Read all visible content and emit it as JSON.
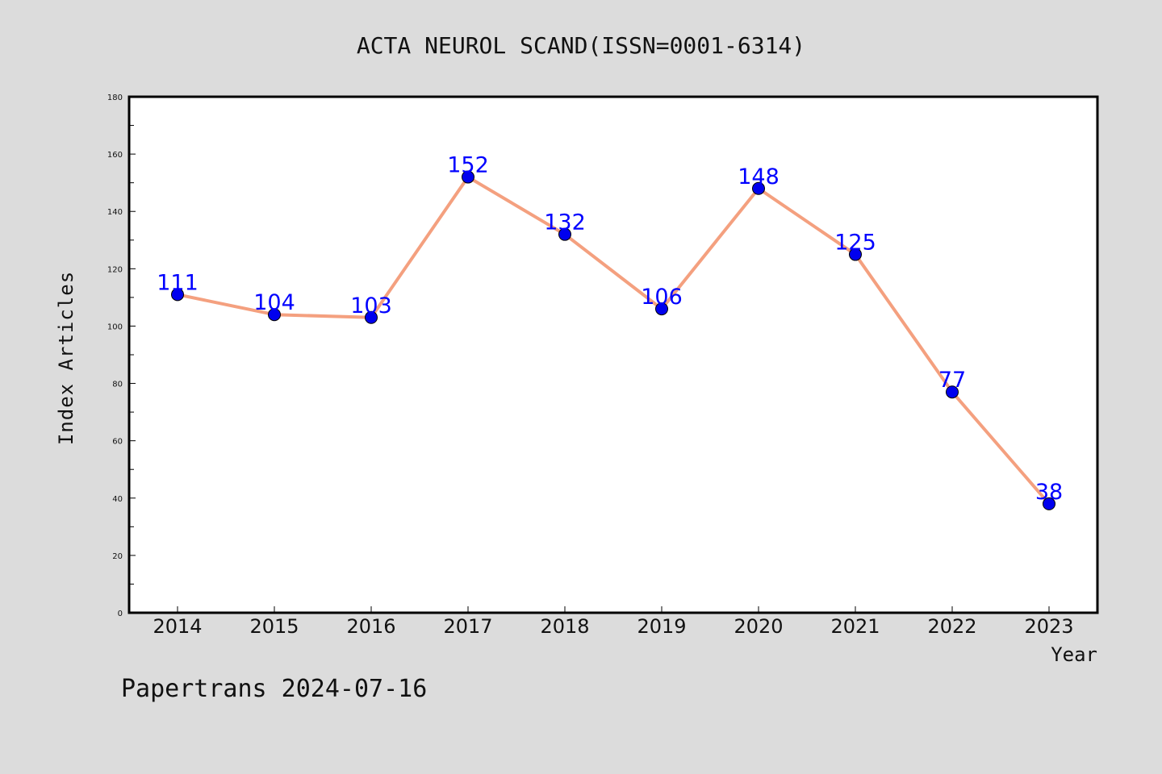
{
  "chart_data": {
    "type": "line",
    "title": "ACTA NEUROL SCAND(ISSN=0001-6314)",
    "xlabel": "Year",
    "ylabel": "Index Articles",
    "x": [
      "2014",
      "2015",
      "2016",
      "2017",
      "2018",
      "2019",
      "2020",
      "2021",
      "2022",
      "2023"
    ],
    "values": [
      111,
      104,
      103,
      152,
      132,
      106,
      148,
      125,
      77,
      38
    ],
    "value_labels": [
      "111",
      "104",
      "103",
      "152",
      "132",
      "106",
      "148",
      "125",
      "77",
      "38"
    ],
    "ylim": [
      0,
      180
    ],
    "yticks": [
      0,
      20,
      40,
      60,
      80,
      100,
      120,
      140,
      160,
      180
    ],
    "ytick_labels": [
      "0",
      "20",
      "40",
      "60",
      "80",
      "100",
      "120",
      "140",
      "160",
      "180"
    ],
    "grid": false,
    "colors": {
      "line": "#f4a07f",
      "marker": "#0000ee",
      "label": "#0000ff",
      "background": "#dcdcdc",
      "plot_background": "#ffffff",
      "frame": "#000000"
    }
  },
  "footer": {
    "credit": "Papertrans 2024-07-16"
  }
}
